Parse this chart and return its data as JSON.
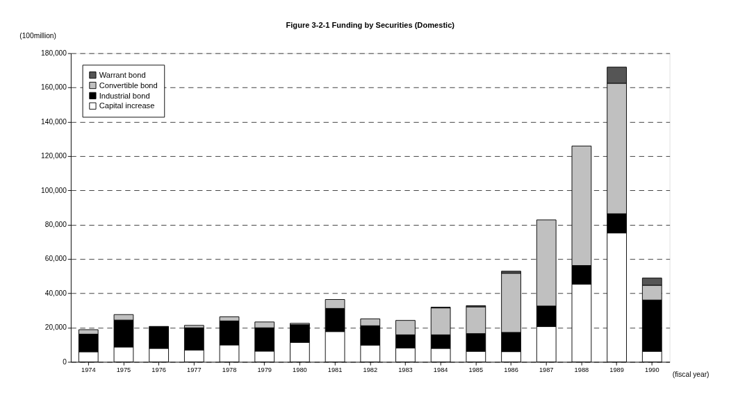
{
  "chart_data": {
    "type": "bar",
    "title": "Figure 3-2-1  Funding by Securities (Domestic)",
    "xlabel": "(fiscal year)",
    "ylabel": "(100million)",
    "stacked": true,
    "categories": [
      "1974",
      "1975",
      "1976",
      "1977",
      "1978",
      "1979",
      "1980",
      "1981",
      "1982",
      "1983",
      "1984",
      "1985",
      "1986",
      "1987",
      "1988",
      "1989",
      "1990"
    ],
    "series": [
      {
        "name": "Capital increase",
        "color": "#ffffff",
        "values": [
          5900,
          8700,
          7900,
          6900,
          9900,
          6300,
          11400,
          17700,
          9800,
          8100,
          7900,
          6200,
          6000,
          20600,
          45300,
          75200,
          6200
        ]
      },
      {
        "name": "Industrial bond",
        "color": "#000000",
        "values": [
          10300,
          15700,
          12800,
          13000,
          14000,
          13600,
          10300,
          13500,
          11300,
          7700,
          7900,
          10300,
          11200,
          12000,
          10900,
          11200,
          29900
        ]
      },
      {
        "name": "Convertible bond",
        "color": "#c0c0c0",
        "values": [
          2600,
          3200,
          null,
          1400,
          2400,
          3400,
          800,
          5200,
          4000,
          8400,
          15700,
          15600,
          34500,
          50200,
          69700,
          76100,
          8600
        ]
      },
      {
        "name": "Warrant bond",
        "color": "#555555",
        "values": [
          null,
          null,
          null,
          null,
          null,
          null,
          null,
          null,
          null,
          null,
          400,
          700,
          1200,
          null,
          null,
          9400,
          4200
        ]
      }
    ],
    "ylim": [
      0,
      180000
    ],
    "yticks": [
      {
        "value": 0,
        "label": "0"
      },
      {
        "value": 20000,
        "label": "20,000"
      },
      {
        "value": 40000,
        "label": "40,000"
      },
      {
        "value": 60000,
        "label": "60,000"
      },
      {
        "value": 80000,
        "label": "80,000"
      },
      {
        "value": 100000,
        "label": "100,000"
      },
      {
        "value": 120000,
        "label": "120,000"
      },
      {
        "value": 140000,
        "label": "140,000"
      },
      {
        "value": 160000,
        "label": "160,000"
      },
      {
        "value": 180000,
        "label": "180,000"
      }
    ],
    "grid": "y",
    "legend": "top left"
  }
}
